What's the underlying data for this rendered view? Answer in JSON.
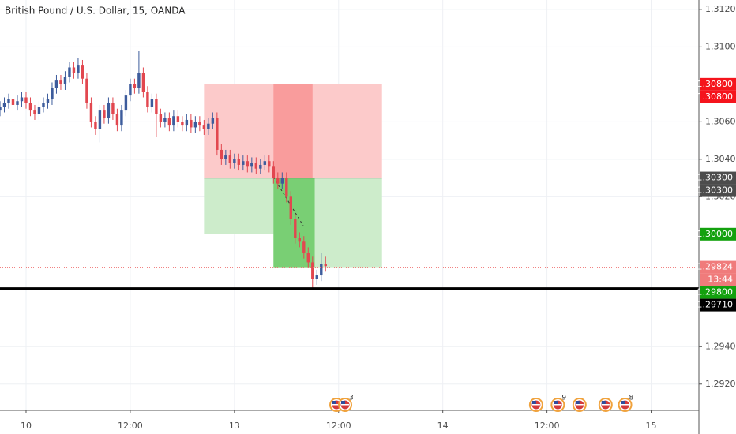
{
  "chart_data": {
    "type": "candlestick",
    "title": "British Pound / U.S. Dollar, 15, OANDA",
    "x": [
      -12,
      -10,
      -8,
      -6,
      -4,
      -2,
      0,
      2,
      4,
      6,
      8,
      10,
      12,
      14,
      16,
      18,
      20,
      22,
      24,
      26,
      28,
      30,
      32,
      34,
      36,
      38,
      40,
      42,
      44,
      46,
      48,
      50,
      52,
      54,
      56,
      58,
      60,
      62,
      64,
      66,
      68,
      70,
      72,
      74,
      76,
      78,
      80,
      82,
      84,
      86,
      88,
      90,
      92,
      94,
      96,
      98,
      100,
      102,
      104,
      106,
      108,
      110,
      112,
      114,
      116,
      118,
      120,
      122,
      124,
      126,
      128,
      130,
      132,
      134,
      136,
      138
    ],
    "open": [
      1.3066,
      1.3068,
      1.307,
      1.3072,
      1.3069,
      1.3071,
      1.3073,
      1.307,
      1.3066,
      1.3064,
      1.3068,
      1.307,
      1.3072,
      1.3078,
      1.3082,
      1.308,
      1.3084,
      1.3089,
      1.3086,
      1.309,
      1.3083,
      1.307,
      1.306,
      1.3056,
      1.3066,
      1.3062,
      1.307,
      1.3064,
      1.3058,
      1.3066,
      1.3074,
      1.308,
      1.3078,
      1.3086,
      1.3076,
      1.3068,
      1.3072,
      1.3064,
      1.306,
      1.3062,
      1.3058,
      1.3063,
      1.306,
      1.3058,
      1.3061,
      1.3057,
      1.306,
      1.3058,
      1.3056,
      1.3059,
      1.3062,
      1.3045,
      1.304,
      1.3042,
      1.3038,
      1.304,
      1.3037,
      1.3039,
      1.3036,
      1.3038,
      1.3035,
      1.3037,
      1.3039,
      1.3036,
      1.303,
      1.3027,
      1.303,
      1.302,
      1.3008,
      1.2998,
      1.2996,
      1.299,
      1.2985,
      1.2976,
      1.2978,
      1.2984
    ],
    "high": [
      1.3071,
      1.3073,
      1.3075,
      1.3075,
      1.3074,
      1.3076,
      1.3076,
      1.3073,
      1.3069,
      1.3071,
      1.3073,
      1.3075,
      1.3081,
      1.3085,
      1.3085,
      1.3087,
      1.3092,
      1.3092,
      1.3094,
      1.3093,
      1.3086,
      1.3073,
      1.3063,
      1.3069,
      1.3069,
      1.3073,
      1.3073,
      1.3067,
      1.3069,
      1.3077,
      1.3083,
      1.3083,
      1.3098,
      1.3089,
      1.3079,
      1.3075,
      1.3075,
      1.3067,
      1.3065,
      1.3065,
      1.3066,
      1.3066,
      1.3063,
      1.3064,
      1.3064,
      1.3063,
      1.3063,
      1.3061,
      1.3062,
      1.3065,
      1.3065,
      1.3048,
      1.3045,
      1.3045,
      1.3043,
      1.3043,
      1.3042,
      1.3042,
      1.3041,
      1.3041,
      1.304,
      1.3042,
      1.3042,
      1.3039,
      1.3033,
      1.3033,
      1.3033,
      1.3023,
      1.3011,
      1.3001,
      1.2999,
      1.2993,
      1.2988,
      1.2981,
      1.299,
      1.2988
    ],
    "low": [
      1.3063,
      1.3065,
      1.3067,
      1.3066,
      1.3066,
      1.3068,
      1.3067,
      1.3063,
      1.3061,
      1.3061,
      1.3065,
      1.3067,
      1.3069,
      1.3075,
      1.3077,
      1.3077,
      1.3081,
      1.3083,
      1.3083,
      1.308,
      1.3067,
      1.3057,
      1.3053,
      1.3049,
      1.3059,
      1.3059,
      1.3061,
      1.3055,
      1.3055,
      1.3063,
      1.3071,
      1.3075,
      1.3075,
      1.3073,
      1.3065,
      1.3065,
      1.3052,
      1.3057,
      1.3057,
      1.3055,
      1.3055,
      1.3057,
      1.3055,
      1.3055,
      1.3054,
      1.3054,
      1.3055,
      1.3053,
      1.3053,
      1.3056,
      1.3042,
      1.3037,
      1.3037,
      1.3035,
      1.3035,
      1.3034,
      1.3034,
      1.3033,
      1.3033,
      1.3032,
      1.3032,
      1.3034,
      1.3033,
      1.3027,
      1.3024,
      1.3024,
      1.3017,
      1.3005,
      1.2995,
      1.2993,
      1.2987,
      1.2982,
      1.2971,
      1.2973,
      1.2975,
      1.298
    ],
    "close": [
      1.3068,
      1.307,
      1.3072,
      1.3069,
      1.3071,
      1.3073,
      1.307,
      1.3066,
      1.3064,
      1.3068,
      1.307,
      1.3072,
      1.3078,
      1.3082,
      1.308,
      1.3084,
      1.3089,
      1.3086,
      1.309,
      1.3083,
      1.307,
      1.306,
      1.3056,
      1.3066,
      1.3062,
      1.307,
      1.3064,
      1.3058,
      1.3066,
      1.3074,
      1.308,
      1.3078,
      1.3086,
      1.3076,
      1.3068,
      1.3072,
      1.3064,
      1.306,
      1.3062,
      1.3058,
      1.3063,
      1.306,
      1.3058,
      1.3061,
      1.3057,
      1.306,
      1.3058,
      1.3056,
      1.3059,
      1.3062,
      1.3045,
      1.304,
      1.3042,
      1.3038,
      1.304,
      1.3037,
      1.3039,
      1.3036,
      1.3038,
      1.3035,
      1.3037,
      1.3039,
      1.3036,
      1.303,
      1.3027,
      1.303,
      1.302,
      1.3008,
      1.2998,
      1.2996,
      1.299,
      1.2985,
      1.2976,
      1.2978,
      1.2984,
      1.2983
    ],
    "up_color": "#3d5c9c",
    "down_color": "#e2474f",
    "xlim": [
      -12,
      310
    ],
    "xticks": [
      {
        "value": 0,
        "label": "10"
      },
      {
        "value": 48,
        "label": "12:00"
      },
      {
        "value": 96,
        "label": "13"
      },
      {
        "value": 144,
        "label": "12:00"
      },
      {
        "value": 192,
        "label": "14"
      },
      {
        "value": 240,
        "label": "12:00"
      },
      {
        "value": 288,
        "label": "15"
      }
    ],
    "ylim": [
      1.2906,
      1.3125
    ],
    "yticks": [
      {
        "value": 1.292,
        "label": "1.29200"
      },
      {
        "value": 1.294,
        "label": "1.29400"
      },
      {
        "value": 1.302,
        "label": "1.30200"
      },
      {
        "value": 1.304,
        "label": "1.30400"
      },
      {
        "value": 1.306,
        "label": "1.30600"
      },
      {
        "value": 1.31,
        "label": "1.31000"
      },
      {
        "value": 1.312,
        "label": "1.31200"
      }
    ],
    "grid": true,
    "zones": [
      {
        "x": [
          82,
          164
        ],
        "from": 1.308,
        "to": 1.303,
        "color": "#fccaca"
      },
      {
        "x": [
          82,
          164
        ],
        "from": 1.303,
        "to": 1.3,
        "color": "#cdeccb"
      },
      {
        "x": [
          114,
          164
        ],
        "from": 1.3,
        "to": 1.29824,
        "color": "#cdeccb"
      },
      {
        "x": [
          114,
          132
        ],
        "from": 1.308,
        "to": 1.303,
        "color": "#f99c9c"
      },
      {
        "x": [
          114,
          133
        ],
        "from": 1.303,
        "to": 1.29824,
        "color": "#79cf74"
      }
    ],
    "entry_line": {
      "x": [
        82,
        164
      ],
      "value": 1.303,
      "color": "#666666"
    },
    "price_lines": [
      {
        "value": 1.29824,
        "color": "#ef7070",
        "style": "dotted",
        "width": 1
      },
      {
        "value": 1.2971,
        "color": "#000000",
        "style": "solid",
        "width": 3
      }
    ],
    "price_labels": [
      {
        "value": 1.308,
        "label": "1.30800",
        "bg": "#f5141c"
      },
      {
        "value": 1.308,
        "label": "1.30800",
        "bg": "#f5141c"
      },
      {
        "value": 1.303,
        "label": "1.30300",
        "bg": "#4c4c4c"
      },
      {
        "value": 1.303,
        "label": "1.30300",
        "bg": "#4c4c4c"
      },
      {
        "value": 1.3,
        "label": "1.30000",
        "bg": "#13a10e"
      },
      {
        "value": 1.29824,
        "label": "1.29824",
        "bg": "#f07b7b",
        "timer": "13:44"
      },
      {
        "value": 1.298,
        "label": "1.29800",
        "bg": "#13a10e"
      },
      {
        "value": 1.2971,
        "label": "1.29710",
        "bg": "#000000"
      }
    ],
    "events": [
      {
        "x": 143
      },
      {
        "x": 147,
        "count": 3
      },
      {
        "x": 235
      },
      {
        "x": 245,
        "count": 9
      },
      {
        "x": 255
      },
      {
        "x": 267
      },
      {
        "x": 276,
        "count": 8
      }
    ]
  }
}
